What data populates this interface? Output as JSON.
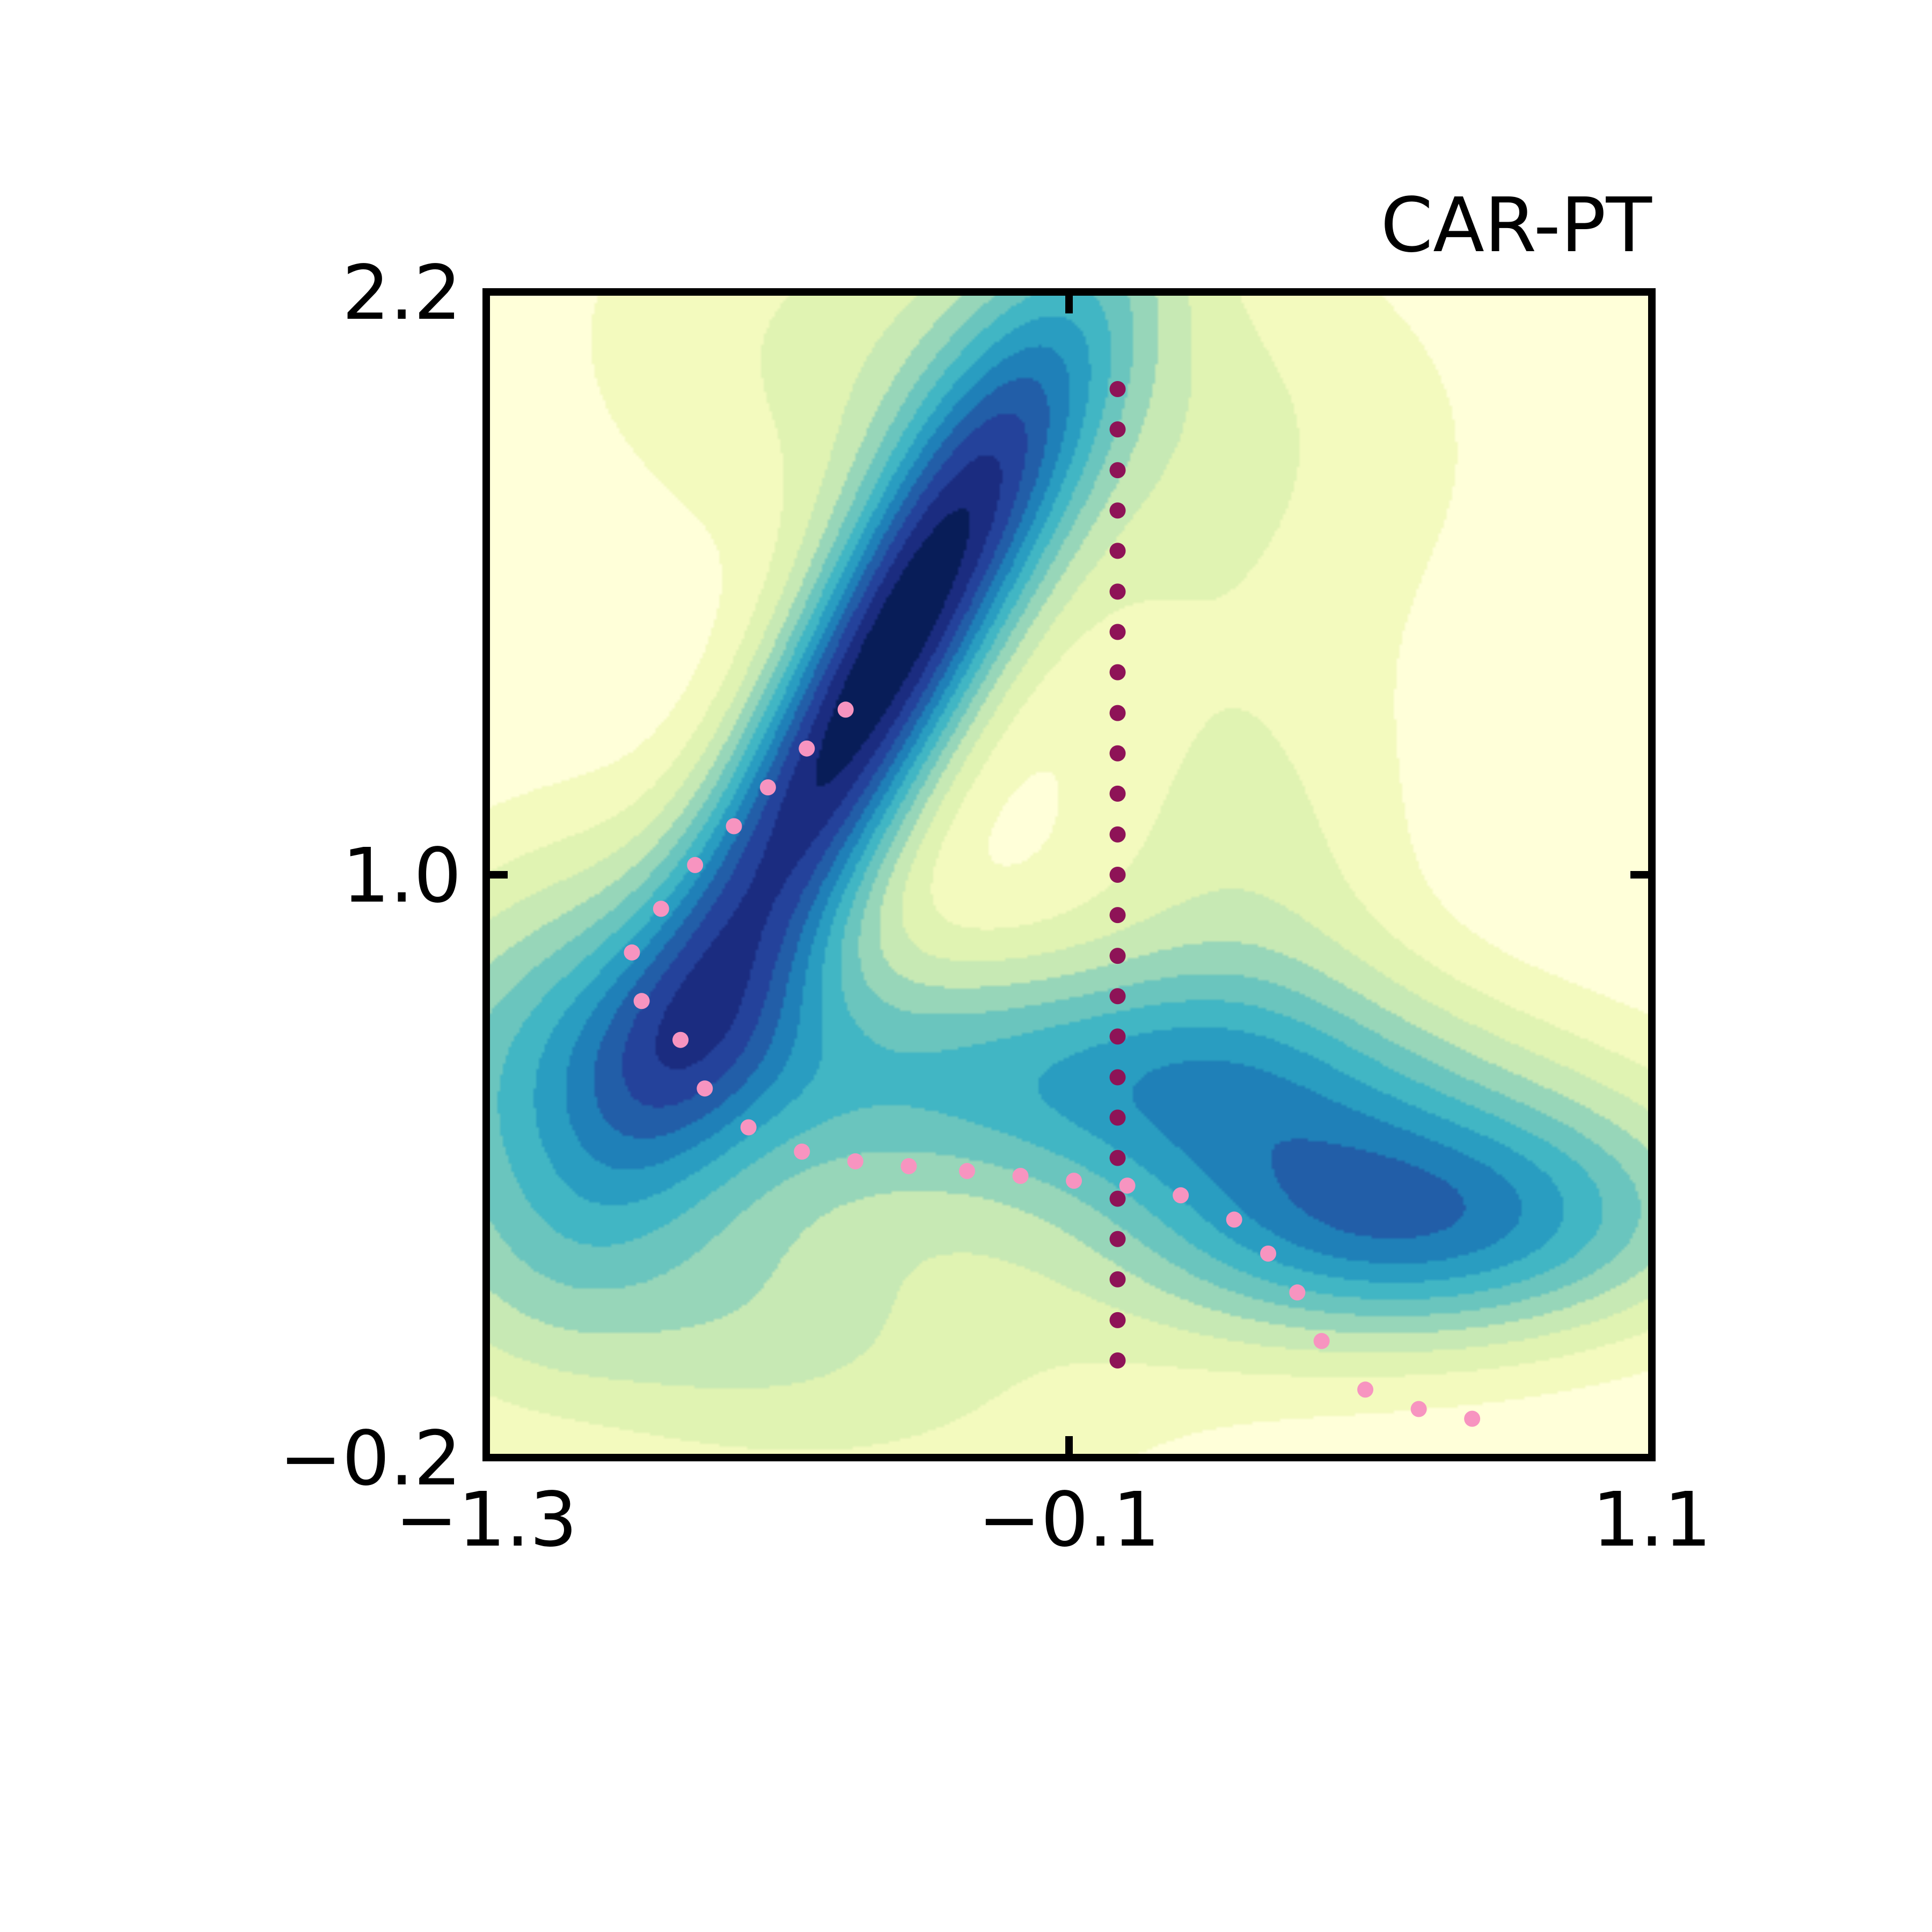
{
  "chart_data": {
    "type": "contour",
    "title": "CAR-PT",
    "xlabel": "",
    "ylabel": "",
    "xlim": [
      -1.3,
      1.1
    ],
    "ylim": [
      -0.2,
      2.2
    ],
    "xticks": [
      -1.3,
      -0.1,
      1.1
    ],
    "xtick_labels": [
      "−1.3",
      "−0.1",
      "1.1"
    ],
    "yticks": [
      -0.2,
      1.0,
      2.2
    ],
    "ytick_labels": [
      "−0.2",
      "1.0",
      "2.2"
    ],
    "grid": false,
    "legend": "none",
    "colormap": [
      "#ffffd9",
      "#edf8b1",
      "#c7e9b4",
      "#7fcdbb",
      "#41b6c4",
      "#1d91c0",
      "#225ea8",
      "#253494",
      "#081d58"
    ],
    "surface": {
      "description_levels": 13,
      "minima": [
        {
          "x": -0.5,
          "y": 1.4,
          "depth": "deepest"
        },
        {
          "x": 0.63,
          "y": 0.3,
          "depth": "deep"
        },
        {
          "x": -0.05,
          "y": 0.6,
          "depth": "shallow"
        }
      ]
    },
    "series": [
      {
        "style": "dotted",
        "color": "#f794c0",
        "x": [
          -0.56,
          -0.64,
          -0.72,
          -0.79,
          -0.87,
          -0.94,
          -1.0,
          -0.98,
          -0.9,
          -0.85,
          -0.76,
          -0.65,
          -0.54,
          -0.43,
          -0.31,
          -0.2,
          -0.09,
          0.02,
          0.13,
          0.24,
          0.31,
          0.37,
          0.42,
          0.51,
          0.62,
          0.73
        ],
        "y": [
          1.34,
          1.26,
          1.18,
          1.1,
          1.02,
          0.93,
          0.84,
          0.74,
          0.66,
          0.56,
          0.48,
          0.43,
          0.41,
          0.4,
          0.39,
          0.38,
          0.37,
          0.36,
          0.34,
          0.29,
          0.22,
          0.14,
          0.04,
          -0.06,
          -0.1,
          -0.12
        ]
      },
      {
        "style": "dotted",
        "color": "#8e1357",
        "x": [
          0.0,
          0.0,
          0.0,
          0.0,
          0.0,
          0.0,
          0.0,
          0.0,
          0.0,
          0.0,
          0.0,
          0.0,
          0.0,
          0.0,
          0.0,
          0.0,
          0.0,
          0.0,
          0.0,
          0.0,
          0.0,
          0.0,
          0.0,
          0.0,
          0.0
        ],
        "y": [
          2.0,
          1.917,
          1.833,
          1.75,
          1.667,
          1.583,
          1.5,
          1.417,
          1.333,
          1.25,
          1.167,
          1.083,
          1.0,
          0.917,
          0.833,
          0.75,
          0.667,
          0.583,
          0.5,
          0.417,
          0.333,
          0.25,
          0.167,
          0.083,
          0.0
        ]
      }
    ]
  }
}
